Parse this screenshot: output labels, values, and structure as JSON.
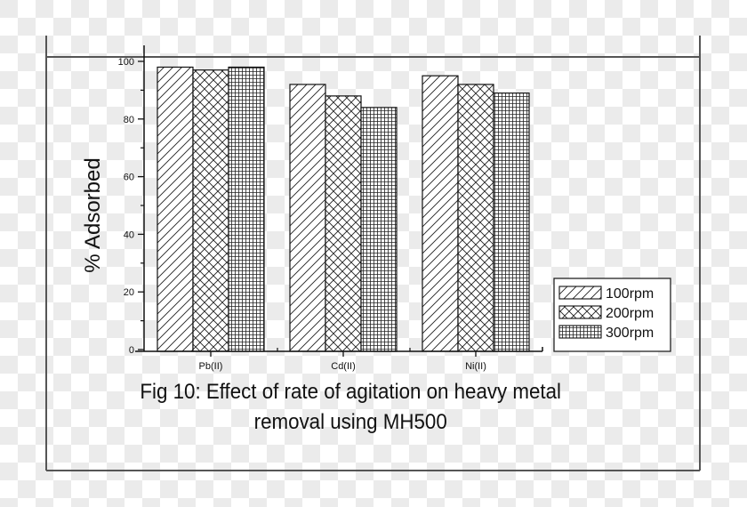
{
  "chart_data": {
    "type": "bar",
    "title": "Fig 10: Effect of rate of agitation on heavy metal removal using MH500",
    "caption_lines": [
      "Fig 10: Effect of rate of agitation on heavy metal",
      "removal using MH500"
    ],
    "xlabel": "",
    "ylabel": "% Adsorbed",
    "categories": [
      "Pb(II)",
      "Cd(II)",
      "Ni(II)"
    ],
    "series": [
      {
        "name": "100rpm",
        "pattern": "diagonal-hatch",
        "values": [
          98,
          92,
          95
        ]
      },
      {
        "name": "200rpm",
        "pattern": "cross-hatch",
        "values": [
          97,
          88,
          92
        ]
      },
      {
        "name": "300rpm",
        "pattern": "grid",
        "values": [
          98,
          84,
          89
        ]
      }
    ],
    "ylim": [
      0,
      100
    ],
    "yticks": [
      0,
      20,
      40,
      60,
      80,
      100
    ],
    "grid": false,
    "legend_position": "lower-right, outside plot",
    "colors": {
      "line": "#111111",
      "fill": "#ffffff",
      "frame": "#555555",
      "checker": "#ebebeb"
    }
  }
}
